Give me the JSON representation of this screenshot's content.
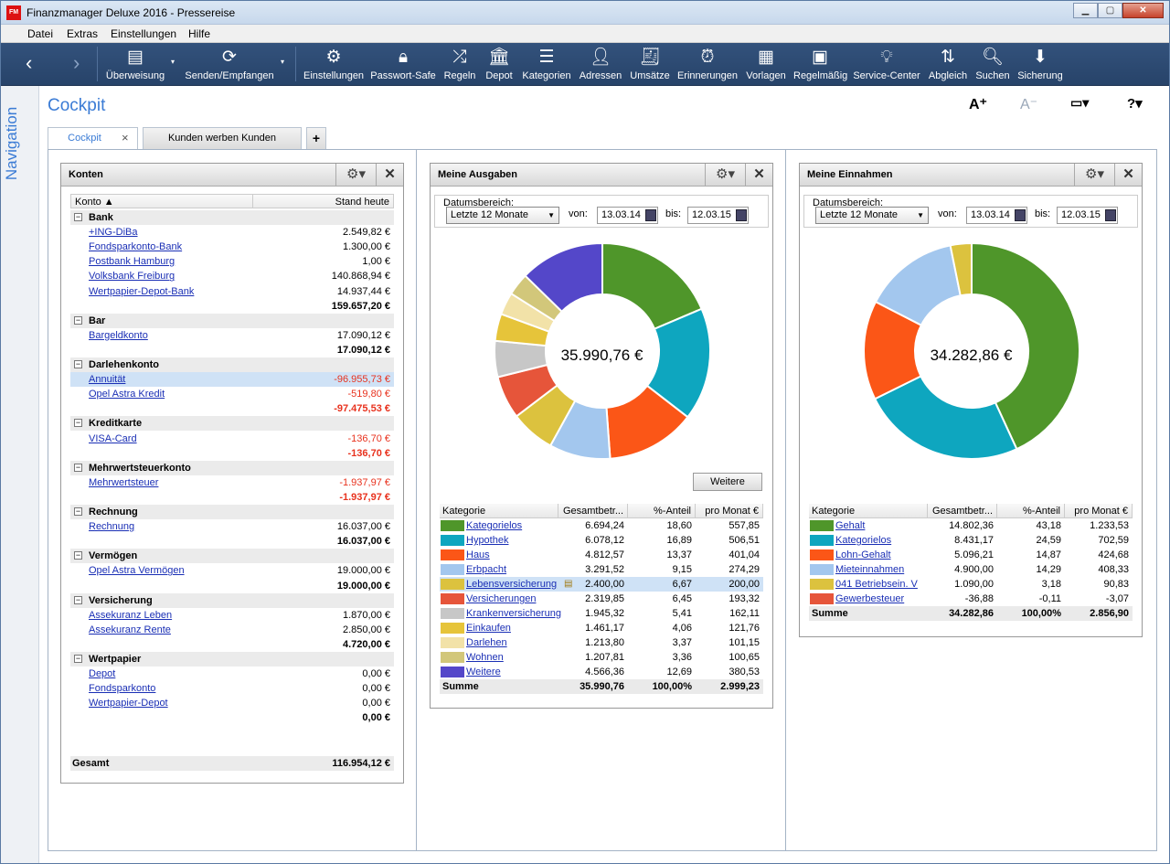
{
  "window": {
    "title": "Finanzmanager Deluxe 2016 - Pressereise",
    "app_icon_text": "FM"
  },
  "menu": [
    "Datei",
    "Extras",
    "Einstellungen",
    "Hilfe"
  ],
  "toolbar": [
    {
      "label": "Überweisung",
      "icon": "transfer-form-icon"
    },
    {
      "label": "Senden/Empfangen",
      "icon": "sync-icon"
    },
    {
      "label": "Einstellungen",
      "icon": "gear-icon"
    },
    {
      "label": "Passwort-Safe",
      "icon": "lock-icon"
    },
    {
      "label": "Regeln",
      "icon": "shuffle-icon"
    },
    {
      "label": "Depot",
      "icon": "bank-icon"
    },
    {
      "label": "Kategorien",
      "icon": "categories-icon"
    },
    {
      "label": "Adressen",
      "icon": "person-icon"
    },
    {
      "label": "Umsätze",
      "icon": "receipt-icon"
    },
    {
      "label": "Erinnerungen",
      "icon": "alarm-clock-icon"
    },
    {
      "label": "Vorlagen",
      "icon": "template-icon"
    },
    {
      "label": "Regelmäßig",
      "icon": "recurring-icon"
    },
    {
      "label": "Service-Center",
      "icon": "lightbulb-icon"
    },
    {
      "label": "Abgleich",
      "icon": "reconcile-icon"
    },
    {
      "label": "Suchen",
      "icon": "search-icon"
    },
    {
      "label": "Sicherung",
      "icon": "download-icon"
    }
  ],
  "nav_label": "Navigation",
  "page_title": "Cockpit",
  "view_controls": {
    "font_bigger": "A⁺",
    "font_smaller": "A⁻",
    "monitor": "▭▾",
    "help": "?▾"
  },
  "tabs": [
    {
      "label": "Cockpit"
    },
    {
      "label": "Kunden werben Kunden"
    },
    {
      "label": "+"
    }
  ],
  "konten": {
    "title": "Konten",
    "col_konto": "Konto ▲",
    "col_stand": "Stand heute",
    "rows": [
      {
        "type": "group",
        "label": "Bank"
      },
      {
        "type": "acc",
        "label": "+ING-DiBa",
        "value": "2.549,82 €"
      },
      {
        "type": "acc",
        "label": "Fondsparkonto-Bank",
        "value": "1.300,00 €"
      },
      {
        "type": "acc",
        "label": "Postbank Hamburg",
        "value": "1,00 €"
      },
      {
        "type": "acc",
        "label": "Volksbank Freiburg",
        "value": "140.868,94 €"
      },
      {
        "type": "acc",
        "label": "Wertpapier-Depot-Bank",
        "value": "14.937,44 €"
      },
      {
        "type": "sub",
        "value": "159.657,20 €"
      },
      {
        "type": "group",
        "label": "Bar"
      },
      {
        "type": "acc",
        "label": "Bargeldkonto",
        "value": "17.090,12 €"
      },
      {
        "type": "sub",
        "value": "17.090,12 €"
      },
      {
        "type": "group",
        "label": "Darlehenkonto"
      },
      {
        "type": "acc",
        "label": "Annuität",
        "value": "-96.955,73 €",
        "neg": true,
        "selected": true
      },
      {
        "type": "acc",
        "label": "Opel Astra Kredit",
        "value": "-519,80 €",
        "neg": true
      },
      {
        "type": "sub",
        "value": "-97.475,53 €",
        "neg": true
      },
      {
        "type": "group",
        "label": "Kreditkarte"
      },
      {
        "type": "acc",
        "label": "VISA-Card",
        "value": "-136,70 €",
        "neg": true
      },
      {
        "type": "sub",
        "value": "-136,70 €",
        "neg": true
      },
      {
        "type": "group",
        "label": "Mehrwertsteuerkonto"
      },
      {
        "type": "acc",
        "label": "Mehrwertsteuer",
        "value": "-1.937,97 €",
        "neg": true
      },
      {
        "type": "sub",
        "value": "-1.937,97 €",
        "neg": true
      },
      {
        "type": "group",
        "label": "Rechnung"
      },
      {
        "type": "acc",
        "label": "Rechnung",
        "value": "16.037,00 €"
      },
      {
        "type": "sub",
        "value": "16.037,00 €"
      },
      {
        "type": "group",
        "label": "Vermögen"
      },
      {
        "type": "acc",
        "label": "Opel Astra Vermögen",
        "value": "19.000,00 €"
      },
      {
        "type": "sub",
        "value": "19.000,00 €"
      },
      {
        "type": "group",
        "label": "Versicherung"
      },
      {
        "type": "acc",
        "label": "Assekuranz Leben",
        "value": "1.870,00 €"
      },
      {
        "type": "acc",
        "label": "Assekuranz Rente",
        "value": "2.850,00 €"
      },
      {
        "type": "sub",
        "value": "4.720,00 €"
      },
      {
        "type": "group",
        "label": "Wertpapier"
      },
      {
        "type": "acc",
        "label": "Depot",
        "value": "0,00 €"
      },
      {
        "type": "acc",
        "label": "Fondsparkonto",
        "value": "0,00 €"
      },
      {
        "type": "acc",
        "label": "Wertpapier-Depot",
        "value": "0,00 €"
      },
      {
        "type": "sub",
        "value": "0,00 €"
      }
    ],
    "total_label": "Gesamt",
    "total_value": "116.954,12 €"
  },
  "ausgaben": {
    "title": "Meine Ausgaben",
    "range_label": "Datumsbereich:",
    "range_value": "Letzte 12 Monate",
    "from_label": "von:",
    "from": "13.03.14",
    "to_label": "bis:",
    "to": "12.03.15",
    "center": "35.990,76 €",
    "more_button": "Weitere",
    "headers": [
      "Kategorie",
      "Gesamtbetr...",
      "%-Anteil",
      "pro Monat €"
    ],
    "rows": [
      {
        "name": "Kategorielos",
        "total": "6.694,24",
        "pct": "18,60",
        "month": "557,85",
        "color": "#4f962a",
        "share": 18.6
      },
      {
        "name": "Hypothek",
        "total": "6.078,12",
        "pct": "16,89",
        "month": "506,51",
        "color": "#0ea6bf",
        "share": 16.89
      },
      {
        "name": "Haus",
        "total": "4.812,57",
        "pct": "13,37",
        "month": "401,04",
        "color": "#fb5617",
        "share": 13.37
      },
      {
        "name": "Erbpacht",
        "total": "3.291,52",
        "pct": "9,15",
        "month": "274,29",
        "color": "#a3c7ee",
        "share": 9.15
      },
      {
        "name": "Lebensversicherung",
        "total": "2.400,00",
        "pct": "6,67",
        "month": "200,00",
        "color": "#dcc23e",
        "share": 6.67,
        "selected": true
      },
      {
        "name": "Versicherungen",
        "total": "2.319,85",
        "pct": "6,45",
        "month": "193,32",
        "color": "#e6553a",
        "share": 6.45
      },
      {
        "name": "Krankenversicherung",
        "total": "1.945,32",
        "pct": "5,41",
        "month": "162,11",
        "color": "#c7c7c7",
        "share": 5.41
      },
      {
        "name": "Einkaufen",
        "total": "1.461,17",
        "pct": "4,06",
        "month": "121,76",
        "color": "#e6c43a",
        "share": 4.06
      },
      {
        "name": "Darlehen",
        "total": "1.213,80",
        "pct": "3,37",
        "month": "101,15",
        "color": "#f2e2a8",
        "share": 3.37
      },
      {
        "name": "Wohnen",
        "total": "1.207,81",
        "pct": "3,36",
        "month": "100,65",
        "color": "#d2c77a",
        "share": 3.36
      },
      {
        "name": "Weitere",
        "total": "4.566,36",
        "pct": "12,69",
        "month": "380,53",
        "color": "#5447c9",
        "share": 12.69
      }
    ],
    "sum": {
      "label": "Summe",
      "total": "35.990,76",
      "pct": "100,00%",
      "month": "2.999,23"
    }
  },
  "einnahmen": {
    "title": "Meine Einnahmen",
    "range_label": "Datumsbereich:",
    "range_value": "Letzte 12 Monate",
    "from_label": "von:",
    "from": "13.03.14",
    "to_label": "bis:",
    "to": "12.03.15",
    "center": "34.282,86 €",
    "headers": [
      "Kategorie",
      "Gesamtbetr...",
      "%-Anteil",
      "pro Monat €"
    ],
    "rows": [
      {
        "name": "Gehalt",
        "total": "14.802,36",
        "pct": "43,18",
        "month": "1.233,53",
        "color": "#4f962a",
        "share": 43.18
      },
      {
        "name": "Kategorielos",
        "total": "8.431,17",
        "pct": "24,59",
        "month": "702,59",
        "color": "#0ea6bf",
        "share": 24.59
      },
      {
        "name": "Lohn-Gehalt",
        "total": "5.096,21",
        "pct": "14,87",
        "month": "424,68",
        "color": "#fb5617",
        "share": 14.87
      },
      {
        "name": "Mieteinnahmen",
        "total": "4.900,00",
        "pct": "14,29",
        "month": "408,33",
        "color": "#a3c7ee",
        "share": 14.29
      },
      {
        "name": "041 Betriebsein. V",
        "total": "1.090,00",
        "pct": "3,18",
        "month": "90,83",
        "color": "#dcc23e",
        "share": 3.18
      },
      {
        "name": "Gewerbesteuer",
        "total": "-36,88",
        "pct": "-0,11",
        "month": "-3,07",
        "color": "#e6553a",
        "share": 0
      }
    ],
    "sum": {
      "label": "Summe",
      "total": "34.282,86",
      "pct": "100,00%",
      "month": "2.856,90"
    }
  }
}
